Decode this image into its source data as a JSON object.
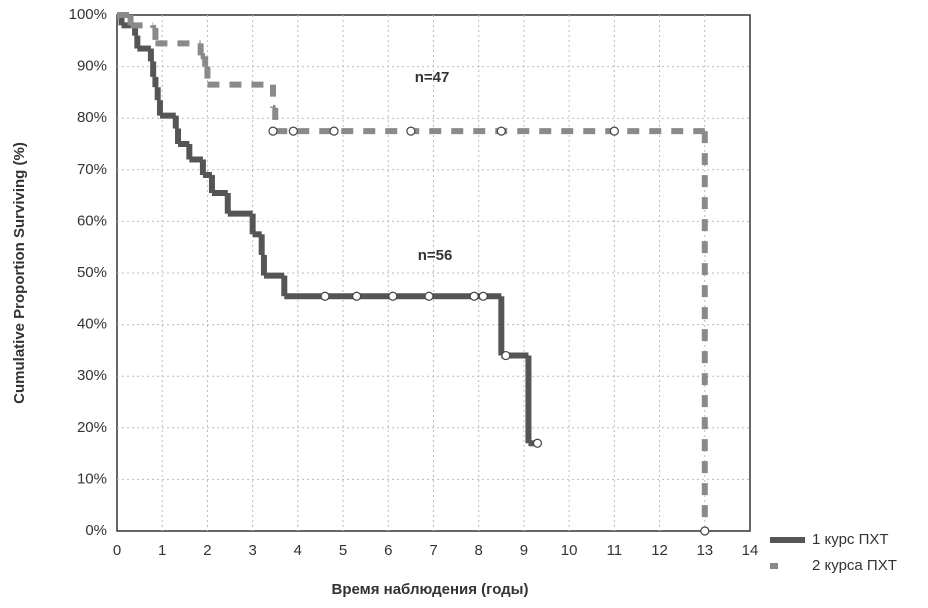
{
  "chart_data": {
    "type": "step",
    "x_label": "Время наблюдения (годы)",
    "y_label": "Cumulative Proportion Surviving (%)",
    "xlim": [
      0,
      14
    ],
    "ylim": [
      0,
      100
    ],
    "xticks": [
      0,
      1,
      2,
      3,
      4,
      5,
      6,
      7,
      8,
      9,
      10,
      11,
      12,
      13,
      14
    ],
    "yticks": [
      {
        "value": 0,
        "label": "0%"
      },
      {
        "value": 10,
        "label": "10%"
      },
      {
        "value": 20,
        "label": "20%"
      },
      {
        "value": 30,
        "label": "30%"
      },
      {
        "value": 40,
        "label": "40%"
      },
      {
        "value": 50,
        "label": "50%"
      },
      {
        "value": 60,
        "label": "60%"
      },
      {
        "value": 70,
        "label": "70%"
      },
      {
        "value": 80,
        "label": "80%"
      },
      {
        "value": 90,
        "label": "90%"
      },
      {
        "value": 100,
        "label": "100%"
      }
    ],
    "grid": true,
    "annotations": [
      "n=47",
      "n=56"
    ],
    "series": [
      {
        "name": "1 курс ПХТ",
        "color": "#555555",
        "dashed": false,
        "x": [
          0,
          0.1,
          0.4,
          0.45,
          0.75,
          0.8,
          0.85,
          0.9,
          0.95,
          1.3,
          1.35,
          1.6,
          1.9,
          2.1,
          2.45,
          3.0,
          3.2,
          3.25,
          3.7,
          8.5,
          9.1,
          9.3
        ],
        "values": [
          100,
          98,
          96,
          93.5,
          91,
          88,
          86,
          83.5,
          80.5,
          78,
          75,
          72,
          69,
          65.5,
          61.5,
          57.5,
          53.5,
          49.5,
          45.5,
          34,
          17,
          17
        ],
        "censored_x": [
          4.6,
          5.3,
          6.1,
          6.9,
          7.9,
          8.1,
          8.6,
          9.3
        ],
        "censored_values": [
          45.5,
          45.5,
          45.5,
          45.5,
          45.5,
          45.5,
          34,
          17
        ]
      },
      {
        "name": "2 курса ПХТ",
        "color": "#8a8a8a",
        "dashed": true,
        "x": [
          0,
          0.3,
          0.8,
          0.85,
          1.85,
          1.95,
          2.0,
          3.45,
          3.5,
          13.0
        ],
        "values": [
          100,
          98,
          97.5,
          94.5,
          92,
          90,
          86.5,
          82,
          77.5,
          0
        ],
        "censored_x": [
          3.45,
          3.9,
          4.8,
          6.5,
          8.5,
          11.0,
          13.0
        ],
        "censored_values": [
          77.5,
          77.5,
          77.5,
          77.5,
          77.5,
          77.5,
          0
        ]
      }
    ]
  }
}
